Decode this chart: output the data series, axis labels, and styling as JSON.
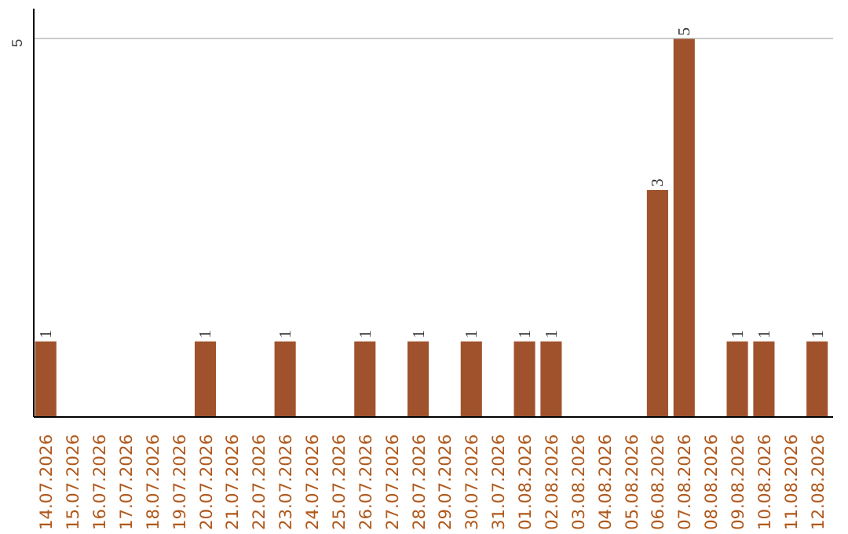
{
  "chart_data": {
    "type": "bar",
    "categories": [
      "14.07.2026",
      "15.07.2026",
      "16.07.2026",
      "17.07.2026",
      "18.07.2026",
      "19.07.2026",
      "20.07.2026",
      "21.07.2026",
      "22.07.2026",
      "23.07.2026",
      "24.07.2026",
      "25.07.2026",
      "26.07.2026",
      "27.07.2026",
      "28.07.2026",
      "29.07.2026",
      "30.07.2026",
      "31.07.2026",
      "01.08.2026",
      "02.08.2026",
      "03.08.2026",
      "04.08.2026",
      "05.08.2026",
      "06.08.2026",
      "07.08.2026",
      "08.08.2026",
      "09.08.2026",
      "10.08.2026",
      "11.08.2026",
      "12.08.2026"
    ],
    "values": [
      1,
      0,
      0,
      0,
      0,
      0,
      1,
      0,
      0,
      1,
      0,
      0,
      1,
      0,
      1,
      0,
      1,
      0,
      1,
      1,
      0,
      0,
      0,
      3,
      5,
      0,
      1,
      1,
      0,
      1
    ],
    "value_labels": [
      "1",
      null,
      null,
      null,
      null,
      null,
      "1",
      null,
      null,
      "1",
      null,
      null,
      "1",
      null,
      "1",
      null,
      "1",
      null,
      "1",
      "1",
      null,
      null,
      null,
      "3",
      "5",
      null,
      "1",
      "1",
      null,
      "1"
    ],
    "color": "#a0522d",
    "ylim": [
      0,
      5.4
    ],
    "yticks": [
      5
    ],
    "grid": "y"
  }
}
